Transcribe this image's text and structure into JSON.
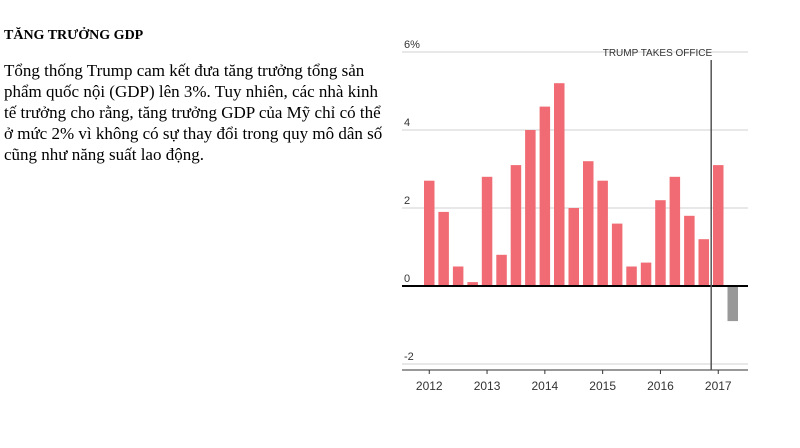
{
  "article": {
    "heading": "TĂNG TRƯỞNG GDP",
    "body": "Tổng thống Trump cam kết đưa tăng trưởng tổng sản phẩm quốc nội (GDP) lên 3%. Tuy nhiên, các nhà kinh tế trưởng cho rằng, tăng trưởng GDP của Mỹ chỉ có thể ở mức 2% vì không có sự thay đổi trong quy mô dân số cũng như năng suất lao động."
  },
  "chart_data": {
    "type": "bar",
    "title": "",
    "xlabel": "",
    "ylabel": "",
    "ylim": [
      -2,
      6
    ],
    "y_ticks": [
      "6%",
      "4",
      "2",
      "0",
      "-2"
    ],
    "x_ticks": [
      "2012",
      "2013",
      "2014",
      "2015",
      "2016",
      "2017"
    ],
    "grid": true,
    "annotation": "TRUMP TAKES OFFICE",
    "positive_color": "#f06b73",
    "negative_color": "#999999",
    "values": [
      2.7,
      1.9,
      0.5,
      0.1,
      2.8,
      0.8,
      3.1,
      4.0,
      4.6,
      5.2,
      2.0,
      3.2,
      2.7,
      1.6,
      0.5,
      0.6,
      2.2,
      2.8,
      1.8,
      1.2,
      3.1,
      -0.9
    ]
  }
}
